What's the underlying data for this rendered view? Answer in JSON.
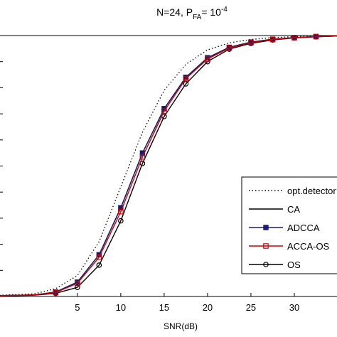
{
  "chart_data": {
    "type": "line",
    "title": {
      "main": "N=24, P",
      "sub": "FA",
      "eq": "= 10",
      "sup": "-4"
    },
    "xlabel": "SNR(dB)",
    "ylabel": "",
    "xlim": [
      -4,
      35
    ],
    "ylim": [
      0,
      1
    ],
    "xticks": [
      5,
      10,
      15,
      20,
      25,
      30
    ],
    "grid": false,
    "legend_position": "right",
    "series": [
      {
        "name": "opt.detector",
        "color": "#000000",
        "style": "dotted",
        "marker": "none",
        "x": [
          -4,
          0,
          2.5,
          5,
          7.5,
          10,
          12.5,
          15,
          17.5,
          20,
          22.5,
          25,
          27.5,
          30,
          32.5,
          35
        ],
        "y": [
          0.005,
          0.01,
          0.03,
          0.08,
          0.21,
          0.42,
          0.63,
          0.79,
          0.89,
          0.945,
          0.972,
          0.985,
          0.992,
          0.996,
          0.998,
          0.999
        ]
      },
      {
        "name": "CA",
        "color": "#000000",
        "style": "solid",
        "marker": "none",
        "x": [
          -4,
          0,
          2.5,
          5,
          7.5,
          10,
          12.5,
          15,
          17.5,
          20,
          22.5,
          25,
          27.5,
          30,
          32.5,
          35
        ],
        "y": [
          0.003,
          0.006,
          0.017,
          0.055,
          0.16,
          0.34,
          0.55,
          0.72,
          0.84,
          0.915,
          0.955,
          0.975,
          0.986,
          0.992,
          0.996,
          0.998
        ]
      },
      {
        "name": "ADCCA",
        "color": "#1a1a6e",
        "style": "solid",
        "marker": "square-filled",
        "x": [
          -4,
          0,
          2.5,
          5,
          7.5,
          10,
          12.5,
          15,
          17.5,
          20,
          22.5,
          25,
          27.5,
          30,
          32.5,
          35
        ],
        "y": [
          0.003,
          0.006,
          0.017,
          0.055,
          0.16,
          0.34,
          0.55,
          0.72,
          0.84,
          0.915,
          0.955,
          0.975,
          0.986,
          0.992,
          0.996,
          0.998
        ]
      },
      {
        "name": "ACCA-OS",
        "color": "#cc0000",
        "style": "solid",
        "marker": "square-open",
        "x": [
          -4,
          0,
          2.5,
          5,
          7.5,
          10,
          12.5,
          15,
          17.5,
          20,
          22.5,
          25,
          27.5,
          30,
          32.5,
          35
        ],
        "y": [
          0.003,
          0.006,
          0.015,
          0.05,
          0.15,
          0.325,
          0.535,
          0.71,
          0.835,
          0.91,
          0.952,
          0.973,
          0.985,
          0.992,
          0.996,
          0.998
        ]
      },
      {
        "name": "OS",
        "color": "#000000",
        "style": "solid",
        "marker": "circle-open",
        "x": [
          -4,
          0,
          2.5,
          5,
          7.5,
          10,
          12.5,
          15,
          17.5,
          20,
          22.5,
          25,
          27.5,
          30,
          32.5,
          35
        ],
        "y": [
          0.002,
          0.005,
          0.012,
          0.035,
          0.12,
          0.29,
          0.51,
          0.69,
          0.815,
          0.9,
          0.948,
          0.97,
          0.983,
          0.991,
          0.995,
          0.998
        ]
      }
    ]
  }
}
